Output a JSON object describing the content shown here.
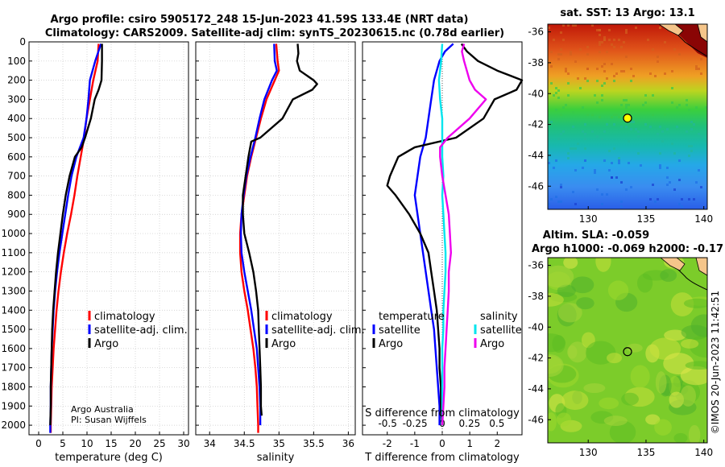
{
  "titles": {
    "line1": "Argo profile: csiro 5905172_248 15-Jun-2023 41.59S 133.4E (NRT data)",
    "line2": "Climatology: CARS2009. Satellite-adj clim: synTS_20230615.nc (0.78d earlier)",
    "sst": "sat. SST: 13 Argo: 13.1",
    "sla1": "Altim. SLA: -0.059",
    "sla2": "Argo h1000: -0.069 h2000: -0.17"
  },
  "credit": {
    "line1": "Argo Australia",
    "line2": "PI: Susan Wijffels",
    "stamp": "©IMOS 20-Jun-2023 11:42:51"
  },
  "legends": {
    "profile": [
      "climatology",
      "satellite-adj. clim.",
      "Argo"
    ],
    "diff_temp_title": "temperature",
    "diff_sal_title": "salinity",
    "diff_items": [
      "satellite",
      "Argo"
    ],
    "sdiff_label": "S difference from climatology"
  },
  "colors": {
    "climatology": "#ff0000",
    "satellite": "#0000ff",
    "argo": "#000000",
    "sat_salinity": "#00e5ee",
    "argo_salinity": "#ee00ee",
    "zero_line": "#555555"
  },
  "chart_data": [
    {
      "type": "line",
      "name": "temperature",
      "xlabel": "temperature (deg C)",
      "xlim": [
        -2,
        31
      ],
      "ylim": [
        0,
        2050
      ],
      "yticks": [
        0,
        100,
        200,
        300,
        400,
        500,
        600,
        700,
        800,
        900,
        1000,
        1100,
        1200,
        1300,
        1400,
        1500,
        1600,
        1700,
        1800,
        1900,
        2000
      ],
      "xticks": [
        0,
        5,
        10,
        15,
        20,
        25,
        30
      ],
      "grid": true,
      "series": [
        {
          "name": "climatology",
          "depth": [
            10,
            100,
            200,
            300,
            400,
            500,
            600,
            700,
            800,
            900,
            1000,
            1100,
            1200,
            1300,
            1400,
            1500,
            1600,
            1700,
            1800,
            1900,
            2000,
            2040
          ],
          "values": [
            12.4,
            12.2,
            11.3,
            10.6,
            9.9,
            9.4,
            8.7,
            8.0,
            7.4,
            6.7,
            5.9,
            5.2,
            4.6,
            4.1,
            3.7,
            3.4,
            3.1,
            2.9,
            2.7,
            2.6,
            2.5,
            2.5
          ]
        },
        {
          "name": "satellite-adj. clim.",
          "depth": [
            10,
            100,
            200,
            300,
            400,
            500,
            600,
            700,
            800,
            900,
            1000,
            1100,
            1200,
            1300,
            1400,
            1500,
            1600,
            1700,
            1800,
            1900,
            2000,
            2040
          ],
          "values": [
            12.9,
            11.7,
            10.6,
            10.3,
            9.9,
            9.3,
            7.8,
            6.8,
            6.1,
            5.5,
            4.9,
            4.3,
            3.8,
            3.4,
            3.1,
            2.9,
            2.7,
            2.6,
            2.5,
            2.5,
            2.4,
            2.4
          ]
        },
        {
          "name": "Argo",
          "depth": [
            10,
            100,
            200,
            250,
            300,
            400,
            500,
            550,
            600,
            700,
            800,
            900,
            1000,
            1100,
            1200,
            1300,
            1400,
            1500,
            1600,
            1700,
            1800,
            1900,
            2000
          ],
          "values": [
            13.1,
            13.1,
            13.0,
            12.4,
            11.6,
            10.8,
            9.6,
            8.9,
            7.5,
            6.4,
            5.6,
            5.0,
            4.5,
            4.0,
            3.6,
            3.3,
            3.0,
            2.8,
            2.7,
            2.6,
            2.5,
            2.5,
            2.4
          ]
        }
      ]
    },
    {
      "type": "line",
      "name": "salinity",
      "xlabel": "salinity",
      "xlim": [
        33.8,
        36.1
      ],
      "ylim": [
        0,
        2050
      ],
      "xticks": [
        34,
        34.5,
        35,
        35.5,
        36
      ],
      "grid": true,
      "series": [
        {
          "name": "climatology",
          "depth": [
            10,
            100,
            150,
            200,
            300,
            400,
            500,
            600,
            700,
            800,
            900,
            1000,
            1100,
            1200,
            1300,
            1400,
            1500,
            1600,
            1700,
            1800,
            1900,
            2000,
            2040
          ],
          "values": [
            34.96,
            34.98,
            35.0,
            34.94,
            34.82,
            34.74,
            34.67,
            34.6,
            34.54,
            34.5,
            34.46,
            34.44,
            34.44,
            34.46,
            34.5,
            34.55,
            34.59,
            34.63,
            34.66,
            34.68,
            34.69,
            34.7,
            34.7
          ]
        },
        {
          "name": "satellite-adj. clim.",
          "depth": [
            10,
            100,
            150,
            200,
            300,
            400,
            500,
            600,
            700,
            800,
            900,
            1000,
            1100,
            1200,
            1300,
            1400,
            1500,
            1600,
            1700,
            1800,
            1900,
            2000
          ],
          "values": [
            34.93,
            34.94,
            34.97,
            34.9,
            34.79,
            34.72,
            34.66,
            34.59,
            34.53,
            34.49,
            34.46,
            34.45,
            34.46,
            34.5,
            34.55,
            34.6,
            34.64,
            34.68,
            34.7,
            34.72,
            34.73,
            34.73
          ]
        },
        {
          "name": "Argo",
          "depth": [
            10,
            60,
            100,
            150,
            200,
            220,
            250,
            300,
            400,
            500,
            520,
            600,
            700,
            800,
            900,
            1000,
            1100,
            1200,
            1300,
            1400,
            1500,
            1600,
            1700,
            1800,
            1900,
            1950
          ],
          "values": [
            35.27,
            35.28,
            35.26,
            35.3,
            35.5,
            35.55,
            35.48,
            35.2,
            35.05,
            34.73,
            34.6,
            34.56,
            34.52,
            34.48,
            34.48,
            34.5,
            34.57,
            34.63,
            34.67,
            34.7,
            34.71,
            34.72,
            34.73,
            34.74,
            34.74,
            34.75
          ]
        }
      ]
    },
    {
      "type": "line",
      "name": "difference",
      "xlabel": "T difference from climatology",
      "x2label": "S difference from climatology",
      "xlim": [
        -2.9,
        2.9
      ],
      "x2lim": [
        -0.73,
        0.73
      ],
      "ylim": [
        0,
        2050
      ],
      "xticks": [
        -2,
        -1,
        0,
        1,
        2
      ],
      "x2ticks": [
        -0.5,
        -0.25,
        0,
        0.25,
        0.5
      ],
      "grid": false,
      "series": [
        {
          "name": "satellite temperature",
          "axis": "T",
          "depth": [
            10,
            50,
            100,
            200,
            300,
            400,
            500,
            600,
            700,
            800,
            900,
            1000,
            1100,
            1200,
            1300,
            1400,
            1500,
            1600,
            1700,
            1800,
            1900,
            2000
          ],
          "values": [
            0.4,
            0.1,
            -0.1,
            -0.3,
            -0.4,
            -0.5,
            -0.6,
            -0.8,
            -0.9,
            -1.0,
            -0.9,
            -0.8,
            -0.7,
            -0.6,
            -0.5,
            -0.4,
            -0.3,
            -0.25,
            -0.2,
            -0.15,
            -0.1,
            -0.1
          ]
        },
        {
          "name": "Argo temperature",
          "axis": "T",
          "depth": [
            10,
            50,
            100,
            150,
            200,
            250,
            300,
            400,
            500,
            550,
            600,
            700,
            750,
            800,
            900,
            1000,
            1100,
            1200,
            1300,
            1400,
            1500,
            1600,
            1700,
            1800,
            1900,
            2000
          ],
          "values": [
            0.7,
            0.9,
            1.3,
            2.0,
            2.9,
            2.7,
            1.9,
            1.5,
            0.5,
            -1.0,
            -1.6,
            -1.9,
            -2.0,
            -1.7,
            -1.2,
            -0.8,
            -0.5,
            -0.4,
            -0.3,
            -0.2,
            -0.15,
            -0.1,
            -0.1,
            -0.05,
            -0.05,
            0.0
          ]
        },
        {
          "name": "satellite salinity",
          "axis": "S",
          "depth": [
            10,
            100,
            200,
            300,
            400,
            500,
            600,
            700,
            800,
            900,
            1000,
            1100,
            1200,
            1300,
            1400,
            1500,
            1600,
            1700,
            1800,
            1900,
            2000
          ],
          "values": [
            0.0,
            -0.01,
            -0.03,
            -0.02,
            0.0,
            0.0,
            0.0,
            0.01,
            0.0,
            0.01,
            0.02,
            0.03,
            0.03,
            0.02,
            0.01,
            0.01,
            0.0,
            0.0,
            0.0,
            0.0,
            0.0
          ]
        },
        {
          "name": "Argo salinity",
          "axis": "S",
          "depth": [
            10,
            50,
            100,
            200,
            250,
            300,
            400,
            500,
            550,
            600,
            700,
            800,
            900,
            1000,
            1100,
            1200,
            1300,
            1400,
            1500,
            1600,
            1700,
            1800,
            1900,
            2000
          ],
          "values": [
            0.2,
            0.18,
            0.2,
            0.25,
            0.3,
            0.4,
            0.25,
            0.05,
            -0.02,
            -0.02,
            0.0,
            0.03,
            0.06,
            0.07,
            0.08,
            0.06,
            0.06,
            0.05,
            0.04,
            0.03,
            0.02,
            0.02,
            0.01,
            0.0
          ]
        }
      ]
    },
    {
      "type": "heatmap",
      "name": "sst_map",
      "xlim": [
        126.5,
        140.3
      ],
      "ylim": [
        -47.5,
        -35.5
      ],
      "xticks": [
        130,
        135,
        140
      ],
      "yticks": [
        -36,
        -38,
        -40,
        -42,
        -44,
        -46
      ],
      "float_position": [
        133.4,
        -41.59
      ]
    },
    {
      "type": "heatmap",
      "name": "sla_map",
      "xlim": [
        126.5,
        140.3
      ],
      "ylim": [
        -47.5,
        -35.5
      ],
      "xticks": [
        130,
        135,
        140
      ],
      "yticks": [
        -36,
        -38,
        -40,
        -42,
        -44,
        -46
      ],
      "float_position": [
        133.4,
        -41.59
      ]
    }
  ]
}
